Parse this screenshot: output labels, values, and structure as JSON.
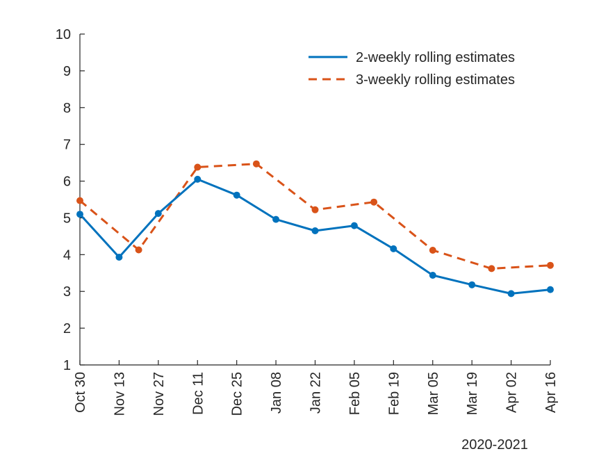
{
  "chart_data": {
    "type": "line",
    "title": "",
    "xlabel": "2020-2021",
    "ylabel": "",
    "ylim": [
      1,
      10
    ],
    "yticks": [
      1,
      2,
      3,
      4,
      5,
      6,
      7,
      8,
      9,
      10
    ],
    "xlim": [
      0,
      168
    ],
    "xtick_positions": [
      0,
      14,
      28,
      42,
      56,
      70,
      84,
      98,
      112,
      126,
      140,
      154,
      168
    ],
    "xtick_labels": [
      "Oct 30",
      "Nov 13",
      "Nov 27",
      "Dec 11",
      "Dec 25",
      "Jan 08",
      "Jan 22",
      "Feb 05",
      "Feb 19",
      "Mar 05",
      "Mar 19",
      "Apr 02",
      "Apr 16"
    ],
    "grid": false,
    "legend_position": "top-right",
    "series": [
      {
        "name": "2-weekly rolling estimates",
        "color": "#0072BD",
        "style": "solid",
        "x": [
          0,
          14,
          28,
          42,
          56,
          70,
          84,
          98,
          112,
          126,
          140,
          154,
          168
        ],
        "values": [
          5.1,
          3.93,
          5.12,
          6.05,
          5.62,
          4.96,
          4.65,
          4.79,
          4.16,
          3.44,
          3.18,
          2.94,
          3.05
        ]
      },
      {
        "name": "3-weekly rolling estimates",
        "color": "#D95319",
        "style": "dashed",
        "x": [
          0,
          21,
          42,
          63,
          84,
          105,
          126,
          147,
          168
        ],
        "values": [
          5.47,
          4.13,
          6.38,
          6.47,
          5.22,
          5.43,
          4.12,
          3.62,
          3.71
        ]
      }
    ]
  }
}
